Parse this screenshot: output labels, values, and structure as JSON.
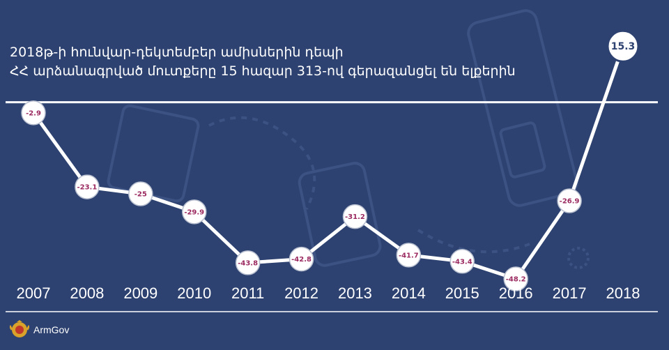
{
  "title_lines": [
    "2018թ-ի հունվար-դեկտեմբեր ամիսներին դեպի",
    "ՀՀ արձանագրված մուտքերը 15 հազար 313-ով գերազանցել են ելքերին"
  ],
  "brand": {
    "name": "ArmGov",
    "logo_icon": "armenia-coat-of-arms-icon"
  },
  "colors": {
    "background": "#2d4270",
    "line": "#ffffff",
    "label_text": "#9b2a60",
    "decor": "#3c5282"
  },
  "chart_data": {
    "type": "line",
    "x": [
      "2007",
      "2008",
      "2009",
      "2010",
      "2011",
      "2012",
      "2013",
      "2014",
      "2015",
      "2016",
      "2017",
      "2018"
    ],
    "values": [
      -2.9,
      -23.1,
      -25,
      -29.9,
      -43.8,
      -42.8,
      -31.2,
      -41.7,
      -43.4,
      -48.2,
      -26.9,
      15.3
    ],
    "labels": [
      "-2.9",
      "-23.1",
      "-25",
      "-29.9",
      "-43.8",
      "-42.8",
      "-31.2",
      "-41.7",
      "-43.4",
      "-48.2",
      "-26.9",
      "15.3"
    ],
    "baseline_value": 0,
    "ylim": [
      -52,
      18
    ],
    "highlight_index": 11,
    "grid": false,
    "legend": "none"
  }
}
